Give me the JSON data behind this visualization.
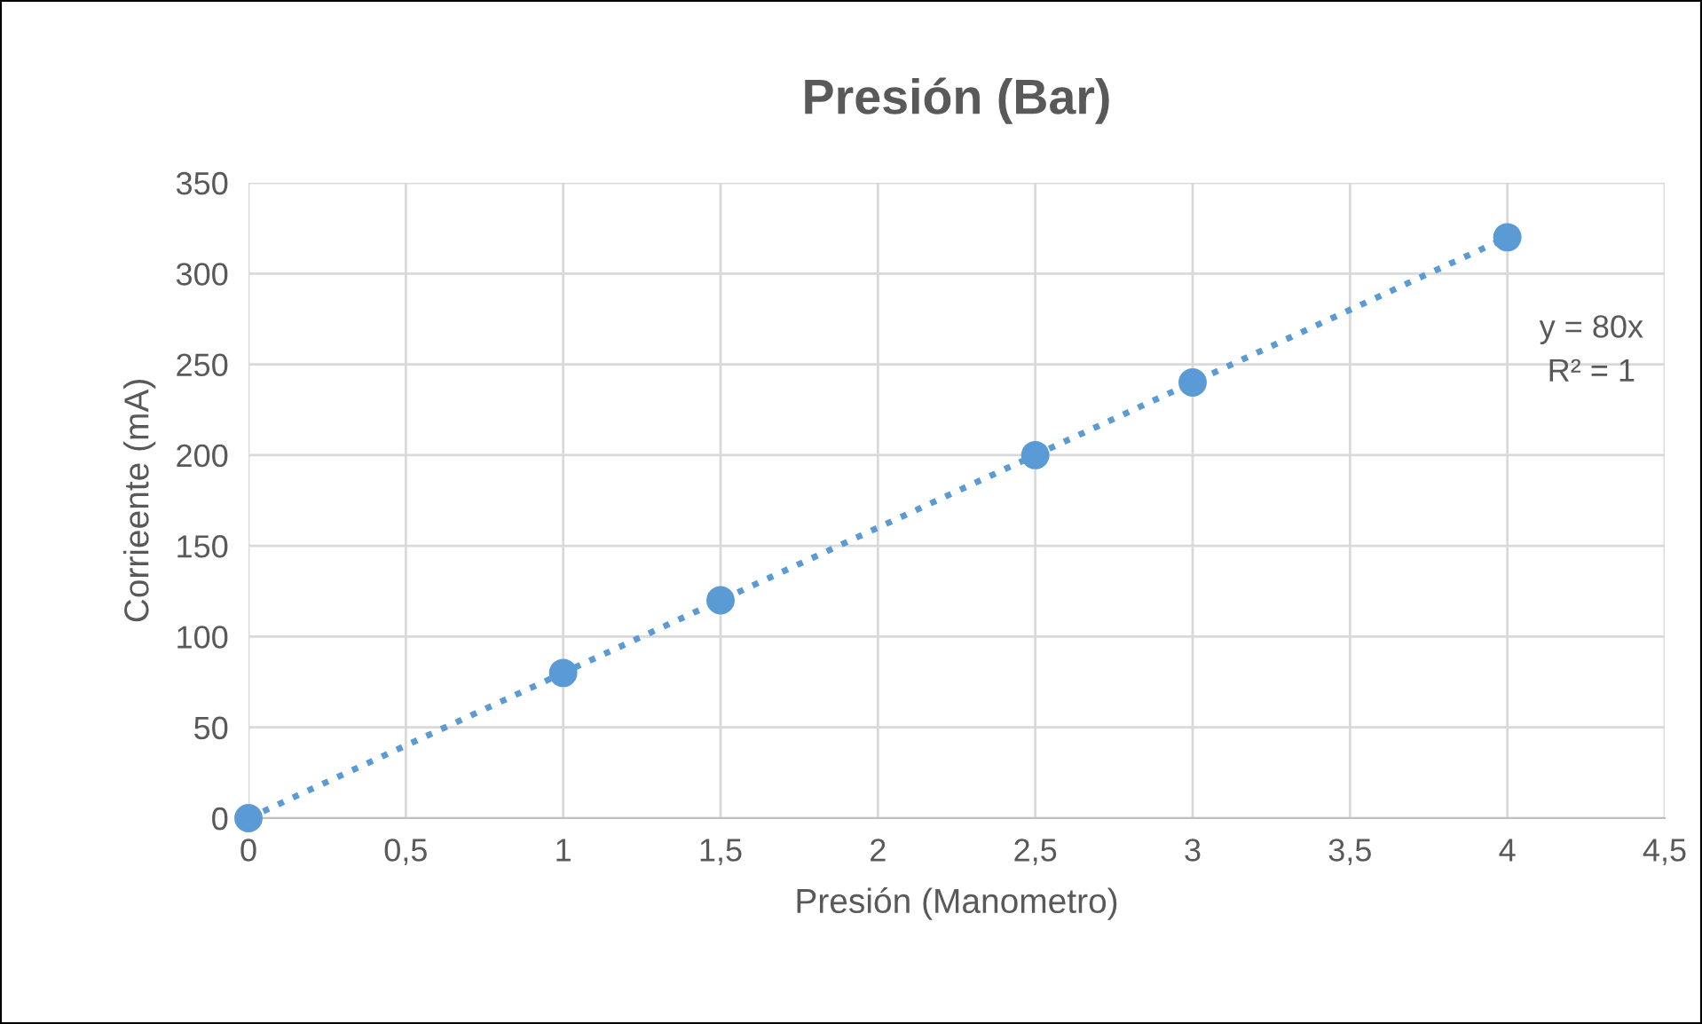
{
  "chart_data": {
    "type": "scatter",
    "title": "Presión (Bar)",
    "xlabel": "Presión (Manometro)",
    "ylabel": "Corrieente (mA)",
    "x": [
      0,
      1,
      1.5,
      2.5,
      3,
      4
    ],
    "series": [
      {
        "color": "#5b9bd5",
        "marker": "circle",
        "values": [
          0,
          80,
          120,
          200,
          240,
          320
        ]
      },
      {
        "type": "line",
        "color": "#5b9bd5",
        "line_style": "dotted",
        "marker": "none",
        "x": [
          0,
          4
        ],
        "values": [
          0,
          320
        ]
      }
    ],
    "annotations": [
      "y = 80x\nR² = 1"
    ],
    "xlim": [
      0,
      4.5
    ],
    "ylim": [
      0,
      350
    ],
    "xticks": [
      0,
      {
        "value": 0.5,
        "label": "0,5"
      },
      1,
      {
        "value": 1.5,
        "label": "1,5"
      },
      2,
      {
        "value": 2.5,
        "label": "2,5"
      },
      3,
      {
        "value": 3.5,
        "label": "3,5"
      },
      4,
      {
        "value": 4.5,
        "label": "4,5"
      }
    ],
    "yticks": [
      0,
      50,
      100,
      150,
      200,
      250,
      300,
      350
    ],
    "grid": true,
    "legend": false
  }
}
